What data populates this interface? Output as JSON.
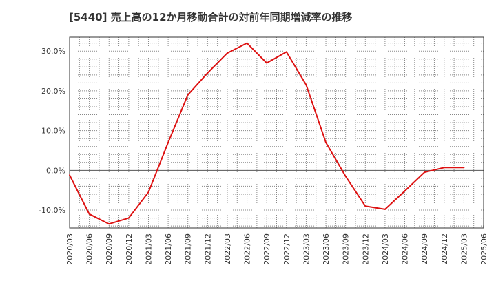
{
  "chart_data": {
    "type": "line",
    "title": "[5440]  売上高の12か月移動合計の対前年同期増減率の推移",
    "xlabel": "",
    "ylabel": "",
    "ylim": [
      -14.5,
      33.5
    ],
    "y_ticks": [
      {
        "value": 30,
        "label": "30.0%"
      },
      {
        "value": 20,
        "label": "20.0%"
      },
      {
        "value": 10,
        "label": "10.0%"
      },
      {
        "value": 0,
        "label": "0.0%"
      },
      {
        "value": -10,
        "label": "-10.0%"
      }
    ],
    "categories": [
      "2020/03",
      "2020/06",
      "2020/09",
      "2020/12",
      "2021/03",
      "2021/06",
      "2021/09",
      "2021/12",
      "2022/03",
      "2022/06",
      "2022/09",
      "2022/12",
      "2023/03",
      "2023/06",
      "2023/09",
      "2023/12",
      "2024/03",
      "2024/06",
      "2024/09",
      "2024/12",
      "2025/03",
      "2025/06"
    ],
    "series": [
      {
        "name": "対前年同期増減率",
        "color": "#dd1111",
        "values": [
          -1.2,
          -11.0,
          -13.5,
          -12.0,
          -5.5,
          7.0,
          19.0,
          24.5,
          29.5,
          32.0,
          27.0,
          29.8,
          21.5,
          7.0,
          -1.5,
          -9.0,
          -9.8,
          -5.2,
          -0.5,
          0.7,
          0.7,
          null
        ]
      }
    ],
    "grid": true
  }
}
